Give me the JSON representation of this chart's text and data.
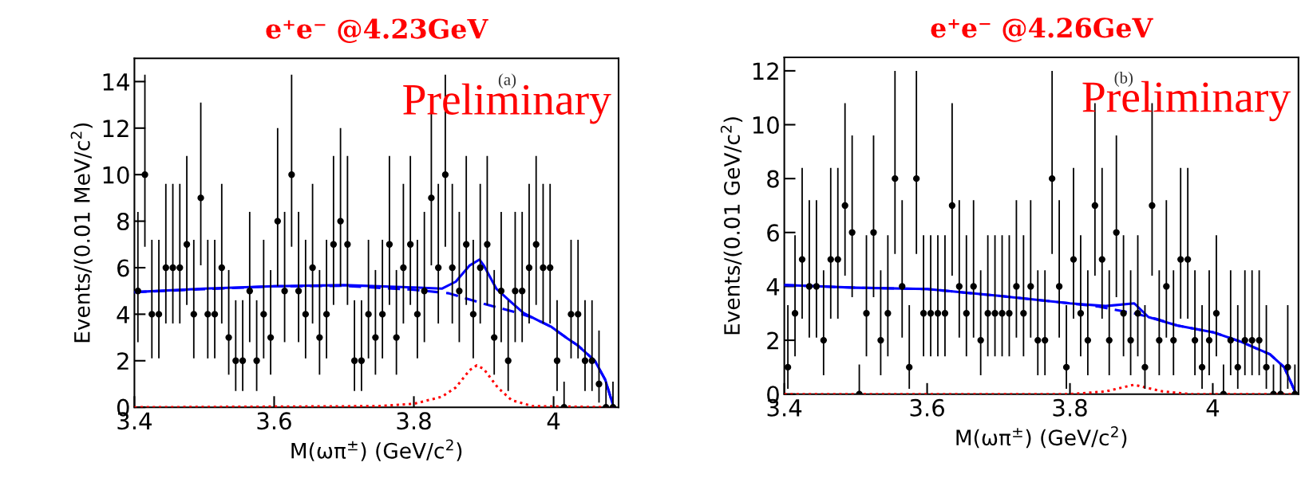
{
  "chart_data": [
    {
      "type": "scatter",
      "title": "e⁺e⁻ @4.23GeV",
      "xlabel": "M(ωπ$^{±}$) (GeV/c$^{2}$)",
      "ylabel": "Events/(0.01 MeV/c$^{2}$)",
      "annotations": [
        "Preliminary",
        "(a)"
      ],
      "xlim": [
        3.4,
        4.093
      ],
      "ylim": [
        0,
        15
      ],
      "xticks": [
        3.4,
        3.6,
        3.8,
        {
          "value": 4.0,
          "label": "4"
        }
      ],
      "yticks": [
        0,
        2,
        4,
        6,
        8,
        10,
        12,
        14
      ],
      "grid": false,
      "legend": false,
      "series": [
        {
          "color": "#000000",
          "marker": "circle",
          "x": [
            3.405,
            3.415,
            3.425,
            3.435,
            3.445,
            3.455,
            3.465,
            3.475,
            3.485,
            3.495,
            3.505,
            3.515,
            3.525,
            3.535,
            3.545,
            3.555,
            3.565,
            3.575,
            3.585,
            3.595,
            3.605,
            3.615,
            3.625,
            3.635,
            3.645,
            3.655,
            3.665,
            3.675,
            3.685,
            3.695,
            3.705,
            3.715,
            3.725,
            3.735,
            3.745,
            3.755,
            3.765,
            3.775,
            3.785,
            3.795,
            3.805,
            3.815,
            3.825,
            3.835,
            3.845,
            3.855,
            3.865,
            3.875,
            3.885,
            3.895,
            3.905,
            3.915,
            3.925,
            3.935,
            3.945,
            3.955,
            3.965,
            3.975,
            3.985,
            3.995,
            4.005,
            4.015,
            4.025,
            4.035,
            4.045,
            4.055,
            4.065,
            4.075,
            4.085
          ],
          "values": [
            5,
            10,
            4,
            4,
            6,
            6,
            6,
            7,
            4,
            9,
            4,
            4,
            6,
            3,
            2,
            2,
            5,
            2,
            4,
            3,
            8,
            5,
            10,
            5,
            4,
            6,
            3,
            4,
            7,
            8,
            7,
            2,
            2,
            4,
            3,
            4,
            7,
            3,
            6,
            7,
            4,
            5,
            9,
            6,
            10,
            6,
            5,
            7,
            4,
            6,
            7,
            3,
            5,
            2,
            5,
            5,
            6,
            7,
            6,
            6,
            2,
            0,
            4,
            4,
            2,
            2,
            1,
            0,
            0
          ],
          "errors": [
            [
              2.8,
              8.4
            ],
            [
              6.9,
              14.3
            ],
            [
              2.1,
              7.2
            ],
            [
              2.1,
              7.2
            ],
            [
              3.6,
              9.6
            ],
            [
              3.6,
              9.6
            ],
            [
              3.6,
              9.6
            ],
            [
              4.4,
              10.8
            ],
            [
              2.1,
              7.2
            ],
            [
              6.1,
              13.1
            ],
            [
              2.1,
              7.2
            ],
            [
              2.1,
              7.2
            ],
            [
              3.6,
              9.6
            ],
            [
              1.4,
              5.9
            ],
            [
              0.7,
              4.6
            ],
            [
              0.7,
              4.6
            ],
            [
              2.8,
              8.4
            ],
            [
              0.7,
              4.6
            ],
            [
              2.1,
              7.2
            ],
            [
              1.4,
              5.9
            ],
            [
              5.2,
              12
            ],
            [
              2.8,
              8.4
            ],
            [
              6.9,
              14.3
            ],
            [
              2.8,
              8.4
            ],
            [
              2.1,
              7.2
            ],
            [
              3.6,
              9.6
            ],
            [
              1.4,
              5.9
            ],
            [
              2.1,
              7.2
            ],
            [
              4.4,
              10.8
            ],
            [
              5.2,
              12
            ],
            [
              4.4,
              10.8
            ],
            [
              0.7,
              4.6
            ],
            [
              0.7,
              4.6
            ],
            [
              2.1,
              7.2
            ],
            [
              1.4,
              5.9
            ],
            [
              2.1,
              7.2
            ],
            [
              4.4,
              10.8
            ],
            [
              1.4,
              5.9
            ],
            [
              3.6,
              9.6
            ],
            [
              4.4,
              10.8
            ],
            [
              2.1,
              7.2
            ],
            [
              2.8,
              8.4
            ],
            [
              6.1,
              13.1
            ],
            [
              3.6,
              9.6
            ],
            [
              6.9,
              14.3
            ],
            [
              3.6,
              9.6
            ],
            [
              2.8,
              8.4
            ],
            [
              4.4,
              10.8
            ],
            [
              2.1,
              7.2
            ],
            [
              3.6,
              9.6
            ],
            [
              4.4,
              10.8
            ],
            [
              1.4,
              5.9
            ],
            [
              2.8,
              8.4
            ],
            [
              0.7,
              4.6
            ],
            [
              2.8,
              8.4
            ],
            [
              2.8,
              8.4
            ],
            [
              3.6,
              9.6
            ],
            [
              4.4,
              10.8
            ],
            [
              3.6,
              9.6
            ],
            [
              3.6,
              9.6
            ],
            [
              0.7,
              4.6
            ],
            [
              0,
              1.1
            ],
            [
              2.1,
              7.2
            ],
            [
              2.1,
              7.2
            ],
            [
              0.7,
              4.6
            ],
            [
              0.7,
              4.6
            ],
            [
              0.2,
              3.3
            ],
            [
              0,
              1.1
            ],
            [
              0,
              1.1
            ]
          ]
        },
        {
          "type": "line",
          "color": "#0000ff",
          "line_style": "solid",
          "x": [
            3.4,
            3.5,
            3.6,
            3.7,
            3.8,
            3.84,
            3.86,
            3.88,
            3.894,
            3.9,
            3.918,
            3.94,
            3.957,
            3.98,
            3.996,
            4.02,
            4.035,
            4.059,
            4.074,
            4.086
          ],
          "values": [
            4.95,
            5.1,
            5.2,
            5.25,
            5.15,
            5.1,
            5.4,
            6.1,
            6.35,
            6.1,
            5.1,
            4.5,
            4.05,
            3.7,
            3.47,
            2.95,
            2.65,
            2.0,
            1.18,
            0
          ]
        },
        {
          "type": "line",
          "color": "#0000ff",
          "line_style": "dashed",
          "x": [
            3.4,
            3.6,
            3.7,
            3.8,
            3.85,
            3.9,
            3.95,
            3.97,
            3.996,
            4.02,
            4.035,
            4.059,
            4.074,
            4.086
          ],
          "values": [
            4.95,
            5.2,
            5.22,
            5.05,
            4.9,
            4.45,
            4.05,
            3.85,
            3.47,
            2.95,
            2.65,
            2.0,
            1.18,
            0
          ]
        },
        {
          "type": "line",
          "color": "#ff0000",
          "line_style": "dotted",
          "x": [
            3.4,
            3.75,
            3.8,
            3.84,
            3.86,
            3.88,
            3.89,
            3.9,
            3.92,
            3.94,
            3.97,
            4.09
          ],
          "values": [
            0,
            0.05,
            0.15,
            0.45,
            0.85,
            1.6,
            1.8,
            1.65,
            0.85,
            0.3,
            0.05,
            0
          ]
        }
      ]
    },
    {
      "type": "scatter",
      "title": "e⁺e⁻ @4.26GeV",
      "xlabel": "M(ωπ$^{±}$) (GeV/c$^{2}$)",
      "ylabel": "Events/(0.01 GeV/c$^{2}$)",
      "annotations": [
        "Preliminary",
        "(b)"
      ],
      "xlim": [
        3.4,
        4.12
      ],
      "ylim": [
        0,
        12.5
      ],
      "xticks": [
        3.4,
        3.6,
        3.8,
        {
          "value": 4.0,
          "label": "4"
        }
      ],
      "yticks": [
        0,
        2,
        4,
        6,
        8,
        10,
        12
      ],
      "grid": false,
      "legend": false,
      "series": [
        {
          "color": "#000000",
          "marker": "circle",
          "x": [
            3.405,
            3.415,
            3.425,
            3.435,
            3.445,
            3.455,
            3.465,
            3.475,
            3.485,
            3.495,
            3.505,
            3.515,
            3.525,
            3.535,
            3.545,
            3.555,
            3.565,
            3.575,
            3.585,
            3.595,
            3.605,
            3.615,
            3.625,
            3.635,
            3.645,
            3.655,
            3.665,
            3.675,
            3.685,
            3.695,
            3.705,
            3.715,
            3.725,
            3.735,
            3.745,
            3.755,
            3.765,
            3.775,
            3.785,
            3.795,
            3.805,
            3.815,
            3.825,
            3.835,
            3.845,
            3.855,
            3.865,
            3.875,
            3.885,
            3.895,
            3.905,
            3.915,
            3.925,
            3.935,
            3.945,
            3.955,
            3.965,
            3.975,
            3.985,
            3.995,
            4.005,
            4.015,
            4.025,
            4.035,
            4.045,
            4.055,
            4.065,
            4.075,
            4.085,
            4.095,
            4.105,
            4.115
          ],
          "values": [
            1,
            3,
            5,
            4,
            4,
            2,
            5,
            5,
            7,
            6,
            0,
            3,
            6,
            2,
            3,
            8,
            4,
            1,
            8,
            3,
            3,
            3,
            3,
            7,
            4,
            3,
            4,
            2,
            3,
            3,
            3,
            3,
            4,
            3,
            4,
            2,
            2,
            8,
            4,
            1,
            5,
            3,
            2,
            7,
            5,
            2,
            6,
            3,
            2,
            3,
            1,
            7,
            2,
            4,
            2,
            5,
            5,
            2,
            1,
            2,
            3,
            0,
            2,
            1,
            2,
            2,
            2,
            1,
            0,
            0,
            1,
            0
          ],
          "errors": [
            [
              0.2,
              3.3
            ],
            [
              1.4,
              5.9
            ],
            [
              2.8,
              8.4
            ],
            [
              2.1,
              7.2
            ],
            [
              2.1,
              7.2
            ],
            [
              0.7,
              4.6
            ],
            [
              2.8,
              8.4
            ],
            [
              2.8,
              8.4
            ],
            [
              4.4,
              10.8
            ],
            [
              3.6,
              9.6
            ],
            [
              0,
              1.1
            ],
            [
              1.4,
              5.9
            ],
            [
              3.6,
              9.6
            ],
            [
              0.7,
              4.6
            ],
            [
              1.4,
              5.9
            ],
            [
              5.2,
              12
            ],
            [
              2.1,
              7.2
            ],
            [
              0.2,
              3.3
            ],
            [
              5.2,
              12
            ],
            [
              1.4,
              5.9
            ],
            [
              1.4,
              5.9
            ],
            [
              1.4,
              5.9
            ],
            [
              1.4,
              5.9
            ],
            [
              4.4,
              10.8
            ],
            [
              2.1,
              7.2
            ],
            [
              1.4,
              5.9
            ],
            [
              2.1,
              7.2
            ],
            [
              0.7,
              4.6
            ],
            [
              1.4,
              5.9
            ],
            [
              1.4,
              5.9
            ],
            [
              1.4,
              5.9
            ],
            [
              1.4,
              5.9
            ],
            [
              2.1,
              7.2
            ],
            [
              1.4,
              5.9
            ],
            [
              2.1,
              7.2
            ],
            [
              0.7,
              4.6
            ],
            [
              0.7,
              4.6
            ],
            [
              5.2,
              12
            ],
            [
              2.1,
              7.2
            ],
            [
              0.2,
              3.3
            ],
            [
              2.8,
              8.4
            ],
            [
              1.4,
              5.9
            ],
            [
              0.7,
              4.6
            ],
            [
              4.4,
              10.8
            ],
            [
              2.8,
              8.4
            ],
            [
              0.7,
              4.6
            ],
            [
              3.6,
              9.6
            ],
            [
              1.4,
              5.9
            ],
            [
              0.7,
              4.6
            ],
            [
              1.4,
              5.9
            ],
            [
              0.2,
              3.3
            ],
            [
              4.4,
              10.8
            ],
            [
              0.7,
              4.6
            ],
            [
              2.1,
              7.2
            ],
            [
              0.7,
              4.6
            ],
            [
              2.8,
              8.4
            ],
            [
              2.8,
              8.4
            ],
            [
              0.7,
              4.6
            ],
            [
              0.2,
              3.3
            ],
            [
              0.7,
              4.6
            ],
            [
              1.4,
              5.9
            ],
            [
              0,
              1.1
            ],
            [
              0.7,
              4.6
            ],
            [
              0.2,
              3.3
            ],
            [
              0.7,
              4.6
            ],
            [
              0.7,
              4.6
            ],
            [
              0.7,
              4.6
            ],
            [
              0.2,
              3.3
            ],
            [
              0,
              1.1
            ],
            [
              0,
              1.1
            ],
            [
              0.2,
              3.3
            ],
            [
              0,
              1.1
            ]
          ]
        },
        {
          "type": "line",
          "color": "#0000ff",
          "line_style": "solid",
          "x": [
            3.4,
            3.5,
            3.6,
            3.7,
            3.8,
            3.85,
            3.89,
            3.91,
            3.95,
            4.0,
            4.04,
            4.08,
            4.1,
            4.115
          ],
          "values": [
            4.05,
            3.95,
            3.9,
            3.65,
            3.37,
            3.27,
            3.37,
            2.86,
            2.55,
            2.3,
            1.94,
            1.48,
            1.0,
            0.1
          ]
        },
        {
          "type": "line",
          "color": "#0000ff",
          "line_style": "dashed",
          "x": [
            3.4,
            3.5,
            3.6,
            3.7,
            3.8,
            3.84,
            3.89,
            3.92,
            3.95,
            4.0,
            4.04,
            4.08,
            4.1,
            4.115
          ],
          "values": [
            4.05,
            3.95,
            3.9,
            3.65,
            3.37,
            3.25,
            3.0,
            2.8,
            2.55,
            2.3,
            1.94,
            1.48,
            1.0,
            0.1
          ]
        },
        {
          "type": "line",
          "color": "#ff0000",
          "line_style": "dotted",
          "x": [
            3.4,
            3.8,
            3.85,
            3.89,
            3.93,
            3.97,
            4.115
          ],
          "values": [
            0,
            0,
            0.1,
            0.35,
            0.1,
            0,
            0
          ]
        }
      ]
    }
  ]
}
